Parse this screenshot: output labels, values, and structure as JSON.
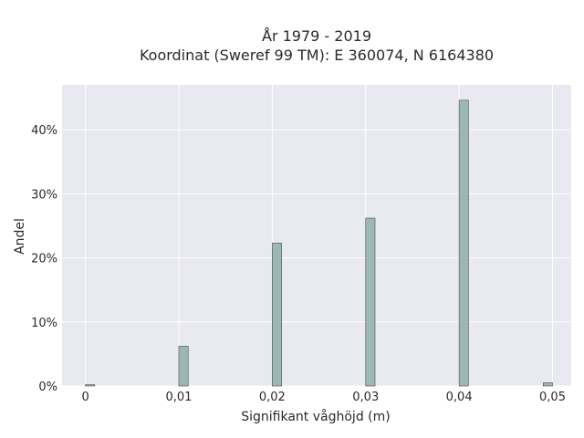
{
  "chart_data": {
    "type": "bar",
    "title_line1": "År 1979 - 2019",
    "title_line2": "Koordinat (Sweref 99 TM): E 360074, N 6164380",
    "xlabel": "Signifikant våghöjd (m)",
    "ylabel": "Andel",
    "x_ticks": [
      "0",
      "0,01",
      "0,02",
      "0,03",
      "0,04",
      "0,05"
    ],
    "y_ticks": [
      "0%",
      "10%",
      "20%",
      "30%",
      "40%"
    ],
    "xlim": [
      -0.0025,
      0.052
    ],
    "ylim": [
      0,
      47
    ],
    "grid": true,
    "bar_color": "#9db7b7",
    "bar_edge": "#4a4a4a",
    "plot_bg": "#e8e9f1",
    "bars": [
      {
        "x": 0.0005,
        "value": 0.2
      },
      {
        "x": 0.0105,
        "value": 6.2
      },
      {
        "x": 0.0205,
        "value": 22.3
      },
      {
        "x": 0.0305,
        "value": 26.2
      },
      {
        "x": 0.0405,
        "value": 44.6
      },
      {
        "x": 0.0495,
        "value": 0.5
      }
    ]
  }
}
